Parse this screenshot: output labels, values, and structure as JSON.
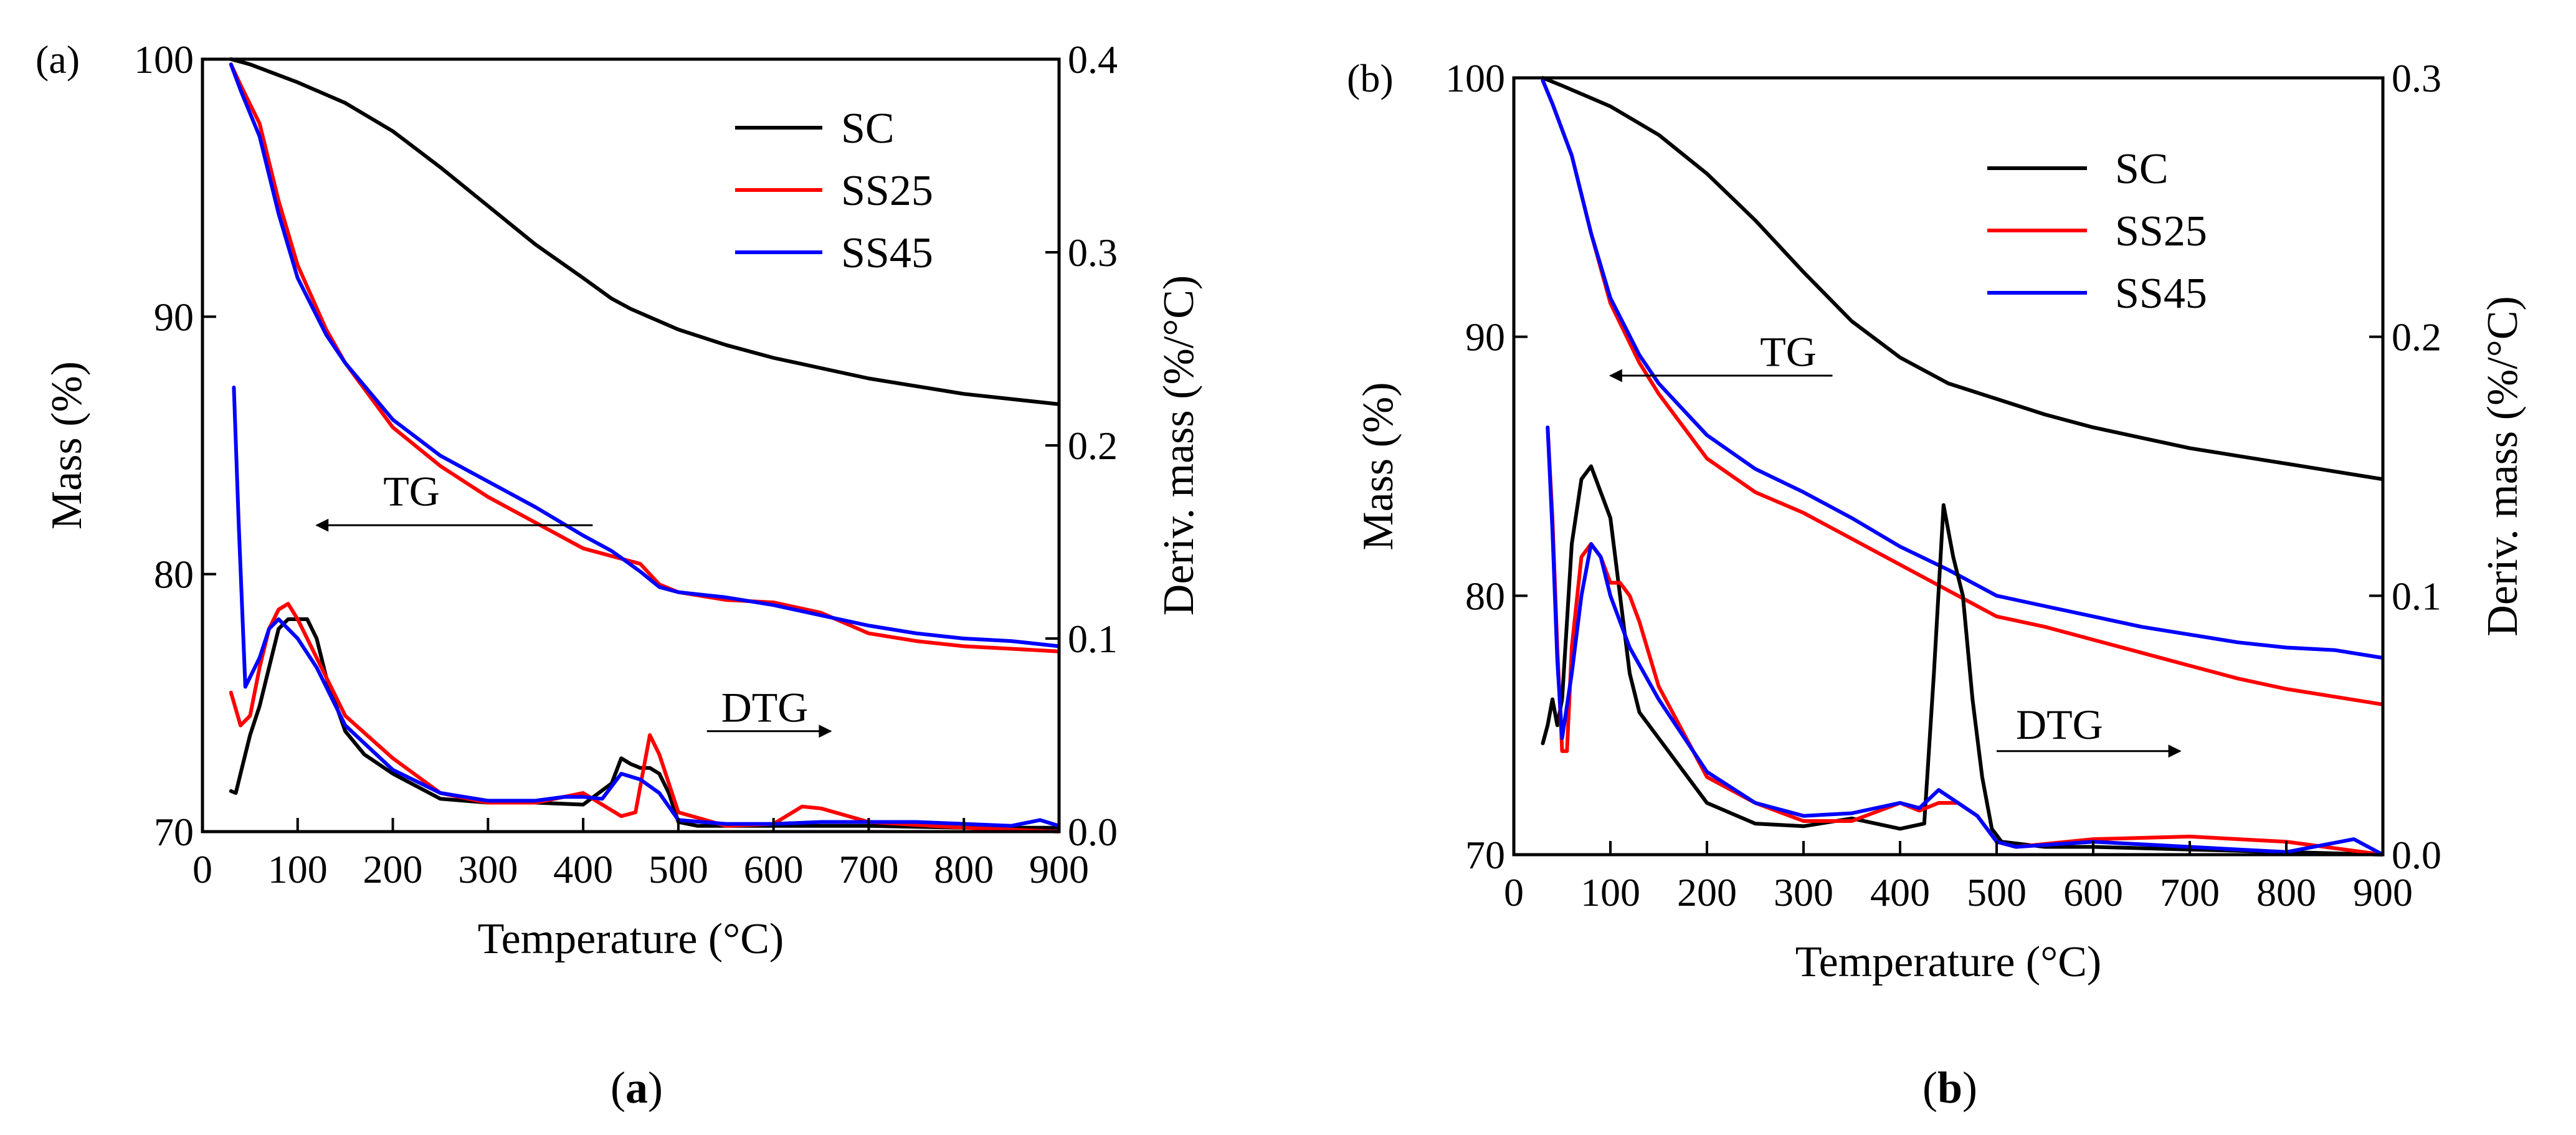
{
  "colors": {
    "SC": "#000000",
    "SS25": "#ff0000",
    "SS45": "#0000ff"
  },
  "captions": {
    "a_open": "(",
    "a_letter": "a",
    "a_close": ")",
    "b_open": "(",
    "b_letter": "b",
    "b_close": ")"
  },
  "chart_data": [
    {
      "type": "line",
      "panel_label": "(a)",
      "xlabel": "Temperature (°C)",
      "ylabel": "Mass (%)",
      "y2label": "Deriv. mass (%/°C)",
      "xlim": [
        0,
        900
      ],
      "ylim": [
        70,
        100
      ],
      "y2lim": [
        0,
        0.4
      ],
      "xticks": [
        0,
        100,
        200,
        300,
        400,
        500,
        600,
        700,
        800,
        900
      ],
      "yticks": [
        70,
        80,
        90,
        100
      ],
      "y2ticks": [
        0.0,
        0.1,
        0.2,
        0.3,
        0.4
      ],
      "legend_position": "top-right",
      "annotations": [
        {
          "text": "TG",
          "arrow": "left",
          "x_start": 410,
          "x_end": 120,
          "y": 81.9,
          "text_x": 190,
          "text_y": 83.2
        },
        {
          "text": "DTG",
          "arrow": "right",
          "x_start": 530,
          "x_end": 660,
          "y": 0.052,
          "text_x": 545,
          "text_y": 0.064
        }
      ],
      "series": [
        {
          "name": "SC",
          "axis": "y",
          "x": [
            30,
            50,
            100,
            150,
            200,
            250,
            300,
            350,
            400,
            430,
            450,
            500,
            550,
            600,
            650,
            700,
            750,
            800,
            850,
            900
          ],
          "y": [
            100,
            99.8,
            99.1,
            98.3,
            97.2,
            95.8,
            94.3,
            92.8,
            91.5,
            90.7,
            90.3,
            89.5,
            88.9,
            88.4,
            88.0,
            87.6,
            87.3,
            87.0,
            86.8,
            86.6
          ]
        },
        {
          "name": "SS25",
          "axis": "y",
          "x": [
            30,
            40,
            60,
            80,
            100,
            130,
            150,
            200,
            250,
            300,
            350,
            400,
            430,
            460,
            480,
            500,
            550,
            600,
            650,
            700,
            750,
            800,
            850,
            900
          ],
          "y": [
            99.8,
            99.0,
            97.5,
            94.5,
            92.0,
            89.5,
            88.2,
            85.7,
            84.2,
            83.0,
            82.0,
            81.0,
            80.7,
            80.4,
            79.6,
            79.3,
            79.0,
            78.9,
            78.5,
            77.7,
            77.4,
            77.2,
            77.1,
            77.0
          ]
        },
        {
          "name": "SS45",
          "axis": "y",
          "x": [
            30,
            40,
            60,
            80,
            100,
            130,
            150,
            200,
            250,
            300,
            350,
            400,
            430,
            460,
            480,
            500,
            550,
            600,
            650,
            700,
            750,
            800,
            850,
            900
          ],
          "y": [
            99.8,
            98.8,
            97.0,
            94.0,
            91.5,
            89.3,
            88.2,
            86.0,
            84.6,
            83.6,
            82.6,
            81.5,
            80.9,
            80.1,
            79.5,
            79.3,
            79.1,
            78.8,
            78.4,
            78.0,
            77.7,
            77.5,
            77.4,
            77.2
          ]
        },
        {
          "name": "SC",
          "axis": "y2",
          "x": [
            30,
            35,
            40,
            50,
            60,
            70,
            80,
            90,
            100,
            110,
            120,
            130,
            150,
            170,
            200,
            250,
            300,
            350,
            400,
            430,
            440,
            450,
            460,
            470,
            480,
            490,
            500,
            520,
            600,
            700,
            800,
            900
          ],
          "y": [
            0.021,
            0.02,
            0.03,
            0.05,
            0.065,
            0.085,
            0.105,
            0.11,
            0.11,
            0.11,
            0.1,
            0.08,
            0.052,
            0.04,
            0.03,
            0.017,
            0.015,
            0.015,
            0.014,
            0.025,
            0.038,
            0.035,
            0.033,
            0.033,
            0.03,
            0.02,
            0.005,
            0.003,
            0.003,
            0.003,
            0.002,
            0.002
          ]
        },
        {
          "name": "SS25",
          "axis": "y2",
          "x": [
            30,
            40,
            50,
            60,
            70,
            80,
            90,
            100,
            110,
            120,
            130,
            150,
            200,
            250,
            300,
            350,
            400,
            440,
            455,
            470,
            480,
            500,
            550,
            600,
            630,
            650,
            700,
            800,
            900
          ],
          "y": [
            0.072,
            0.055,
            0.06,
            0.085,
            0.105,
            0.115,
            0.118,
            0.11,
            0.1,
            0.09,
            0.08,
            0.06,
            0.038,
            0.02,
            0.015,
            0.015,
            0.02,
            0.008,
            0.01,
            0.05,
            0.04,
            0.01,
            0.003,
            0.004,
            0.013,
            0.012,
            0.005,
            0.002,
            0.0
          ]
        },
        {
          "name": "SS45",
          "axis": "y2",
          "x": [
            33,
            38,
            45,
            50,
            60,
            70,
            80,
            90,
            100,
            120,
            150,
            200,
            250,
            300,
            350,
            380,
            400,
            420,
            440,
            460,
            480,
            500,
            550,
            600,
            650,
            700,
            750,
            800,
            850,
            880,
            900
          ],
          "y": [
            0.23,
            0.16,
            0.075,
            0.08,
            0.09,
            0.105,
            0.11,
            0.105,
            0.1,
            0.085,
            0.055,
            0.032,
            0.02,
            0.016,
            0.016,
            0.018,
            0.018,
            0.017,
            0.03,
            0.027,
            0.02,
            0.006,
            0.004,
            0.004,
            0.005,
            0.005,
            0.005,
            0.004,
            0.003,
            0.006,
            0.003
          ]
        }
      ]
    },
    {
      "type": "line",
      "panel_label": "(b)",
      "xlabel": "Temperature (°C)",
      "ylabel": "Mass (%)",
      "y2label": "Deriv. mass (%/°C)",
      "xlim": [
        0,
        900
      ],
      "ylim": [
        70,
        100
      ],
      "y2lim": [
        0,
        0.3
      ],
      "xticks": [
        0,
        100,
        200,
        300,
        400,
        500,
        600,
        700,
        800,
        900
      ],
      "yticks": [
        70,
        80,
        90,
        100
      ],
      "y2ticks": [
        0.0,
        0.1,
        0.2,
        0.3
      ],
      "legend_position": "top-right",
      "annotations": [
        {
          "text": "TG",
          "arrow": "left",
          "x_start": 330,
          "x_end": 100,
          "y": 88.5,
          "text_x": 255,
          "text_y": 89.4
        },
        {
          "text": "DTG",
          "arrow": "right",
          "x_start": 500,
          "x_end": 690,
          "y": 0.04,
          "text_x": 520,
          "text_y": 0.05
        }
      ],
      "series": [
        {
          "name": "SC",
          "axis": "y",
          "x": [
            30,
            50,
            100,
            150,
            200,
            250,
            300,
            350,
            400,
            450,
            500,
            550,
            600,
            650,
            700,
            750,
            800,
            850,
            900
          ],
          "y": [
            100,
            99.7,
            98.9,
            97.8,
            96.3,
            94.5,
            92.5,
            90.6,
            89.2,
            88.2,
            87.6,
            87.0,
            86.5,
            86.1,
            85.7,
            85.4,
            85.1,
            84.8,
            84.5
          ]
        },
        {
          "name": "SS25",
          "axis": "y",
          "x": [
            30,
            40,
            60,
            80,
            100,
            130,
            150,
            200,
            250,
            300,
            350,
            400,
            450,
            500,
            550,
            600,
            650,
            700,
            750,
            800,
            850,
            900
          ],
          "y": [
            99.9,
            99.0,
            97.0,
            94.0,
            91.3,
            89.0,
            87.8,
            85.3,
            84.0,
            83.2,
            82.2,
            81.2,
            80.2,
            79.2,
            78.8,
            78.3,
            77.8,
            77.3,
            76.8,
            76.4,
            76.1,
            75.8
          ]
        },
        {
          "name": "SS45",
          "axis": "y",
          "x": [
            30,
            40,
            60,
            80,
            100,
            130,
            150,
            200,
            250,
            300,
            350,
            400,
            450,
            500,
            550,
            600,
            650,
            700,
            750,
            800,
            850,
            900
          ],
          "y": [
            99.9,
            99.0,
            97.0,
            94.0,
            91.5,
            89.3,
            88.2,
            86.2,
            84.9,
            84.0,
            83.0,
            81.9,
            81.0,
            80.0,
            79.6,
            79.2,
            78.8,
            78.5,
            78.2,
            78.0,
            77.9,
            77.6
          ]
        },
        {
          "name": "SC",
          "axis": "y2",
          "x": [
            30,
            35,
            40,
            45,
            50,
            55,
            60,
            70,
            80,
            90,
            100,
            110,
            120,
            130,
            150,
            200,
            250,
            300,
            350,
            400,
            425,
            435,
            445,
            455,
            465,
            475,
            485,
            495,
            505,
            550,
            600,
            700,
            800,
            900
          ],
          "y": [
            0.043,
            0.05,
            0.06,
            0.05,
            0.06,
            0.09,
            0.12,
            0.145,
            0.15,
            0.14,
            0.13,
            0.1,
            0.07,
            0.055,
            0.045,
            0.02,
            0.012,
            0.011,
            0.014,
            0.01,
            0.012,
            0.07,
            0.135,
            0.115,
            0.1,
            0.06,
            0.03,
            0.01,
            0.005,
            0.003,
            0.003,
            0.002,
            0.001,
            0.0
          ]
        },
        {
          "name": "SS25",
          "axis": "y2",
          "x": [
            35,
            40,
            45,
            50,
            55,
            60,
            70,
            80,
            90,
            100,
            110,
            120,
            130,
            150,
            200,
            250,
            300,
            350,
            400,
            420,
            440,
            460,
            480,
            500,
            520,
            600,
            700,
            800,
            900
          ],
          "y": [
            0.165,
            0.13,
            0.08,
            0.04,
            0.04,
            0.08,
            0.115,
            0.12,
            0.115,
            0.105,
            0.105,
            0.1,
            0.09,
            0.065,
            0.03,
            0.02,
            0.013,
            0.013,
            0.02,
            0.017,
            0.02,
            0.02,
            0.015,
            0.005,
            0.003,
            0.006,
            0.007,
            0.005,
            0.0
          ]
        },
        {
          "name": "SS45",
          "axis": "y2",
          "x": [
            35,
            40,
            45,
            50,
            60,
            70,
            80,
            90,
            100,
            120,
            150,
            200,
            250,
            300,
            350,
            400,
            420,
            440,
            460,
            480,
            500,
            520,
            600,
            700,
            800,
            870,
            900
          ],
          "y": [
            0.165,
            0.125,
            0.075,
            0.045,
            0.07,
            0.1,
            0.12,
            0.115,
            0.1,
            0.08,
            0.06,
            0.032,
            0.02,
            0.015,
            0.016,
            0.02,
            0.018,
            0.025,
            0.02,
            0.015,
            0.005,
            0.003,
            0.005,
            0.003,
            0.001,
            0.006,
            0.0
          ]
        }
      ]
    }
  ]
}
